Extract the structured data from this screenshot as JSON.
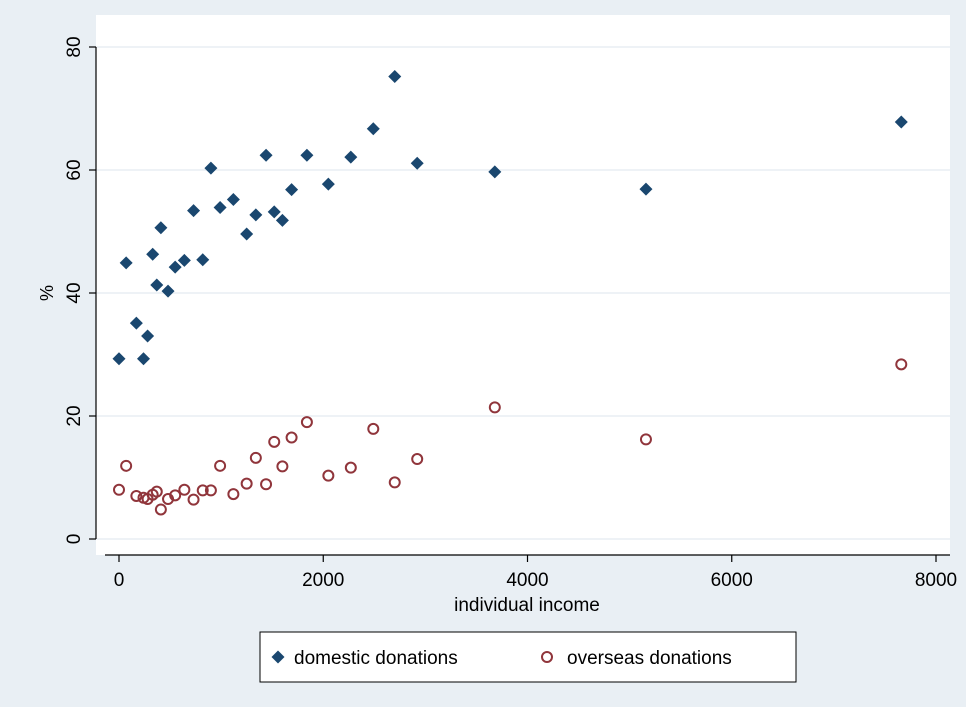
{
  "chart_data": {
    "type": "scatter",
    "title": "",
    "xlabel": "individual income",
    "ylabel": "%",
    "xlim": [
      -100,
      8000
    ],
    "ylim": [
      0,
      80
    ],
    "xticks": [
      0,
      2000,
      4000,
      6000,
      8000
    ],
    "yticks": [
      0,
      20,
      40,
      60,
      80
    ],
    "grid": "horizontal",
    "legend_position": "bottom",
    "colors": {
      "outer_background": "#e9eff4",
      "plot_background": "#ffffff",
      "grid": "#e8eef3",
      "domestic": "#1a476f",
      "overseas": "#90353b"
    },
    "series": [
      {
        "name": "domestic donations",
        "marker": "diamond",
        "points": [
          [
            0,
            29.3
          ],
          [
            70,
            44.9
          ],
          [
            170,
            35.1
          ],
          [
            240,
            29.3
          ],
          [
            280,
            33.0
          ],
          [
            330,
            46.3
          ],
          [
            370,
            41.3
          ],
          [
            410,
            50.6
          ],
          [
            480,
            40.3
          ],
          [
            550,
            44.2
          ],
          [
            640,
            45.3
          ],
          [
            730,
            53.4
          ],
          [
            820,
            45.4
          ],
          [
            900,
            60.3
          ],
          [
            990,
            53.9
          ],
          [
            1120,
            55.2
          ],
          [
            1250,
            49.6
          ],
          [
            1340,
            52.7
          ],
          [
            1440,
            62.4
          ],
          [
            1520,
            53.2
          ],
          [
            1600,
            51.8
          ],
          [
            1690,
            56.8
          ],
          [
            1840,
            62.4
          ],
          [
            2050,
            57.7
          ],
          [
            2270,
            62.1
          ],
          [
            2490,
            66.7
          ],
          [
            2700,
            75.2
          ],
          [
            2920,
            61.1
          ],
          [
            3680,
            59.7
          ],
          [
            5160,
            56.9
          ],
          [
            7660,
            67.8
          ]
        ]
      },
      {
        "name": "overseas donations",
        "marker": "circle",
        "points": [
          [
            0,
            8.0
          ],
          [
            70,
            11.9
          ],
          [
            170,
            7.0
          ],
          [
            240,
            6.7
          ],
          [
            280,
            6.5
          ],
          [
            330,
            7.2
          ],
          [
            370,
            7.7
          ],
          [
            410,
            4.8
          ],
          [
            480,
            6.5
          ],
          [
            550,
            7.1
          ],
          [
            640,
            8.0
          ],
          [
            730,
            6.4
          ],
          [
            820,
            7.9
          ],
          [
            900,
            7.9
          ],
          [
            990,
            11.9
          ],
          [
            1120,
            7.3
          ],
          [
            1250,
            9.0
          ],
          [
            1340,
            13.2
          ],
          [
            1440,
            8.9
          ],
          [
            1520,
            15.8
          ],
          [
            1600,
            11.8
          ],
          [
            1690,
            16.5
          ],
          [
            1840,
            19.0
          ],
          [
            2050,
            10.3
          ],
          [
            2270,
            11.6
          ],
          [
            2490,
            17.9
          ],
          [
            2700,
            9.2
          ],
          [
            2920,
            13.0
          ],
          [
            3680,
            21.4
          ],
          [
            5160,
            16.2
          ],
          [
            7660,
            28.4
          ]
        ]
      }
    ]
  }
}
